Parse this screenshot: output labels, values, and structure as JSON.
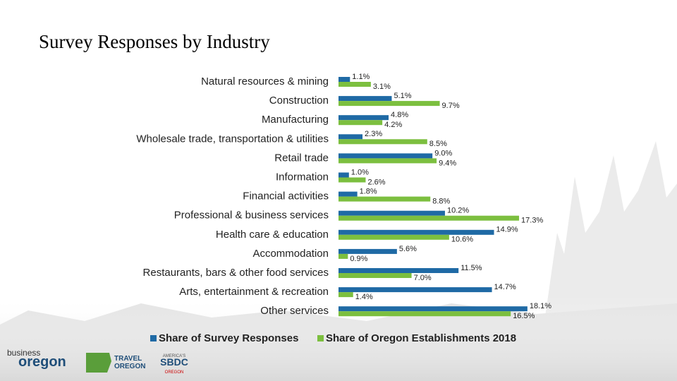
{
  "chart_data": {
    "type": "bar",
    "orientation": "horizontal",
    "title": "Survey Responses by Industry",
    "categories": [
      "Natural resources & mining",
      "Construction",
      "Manufacturing",
      "Wholesale trade, transportation & utilities",
      "Retail trade",
      "Information",
      "Financial activities",
      "Professional & business services",
      "Health care & education",
      "Accommodation",
      "Restaurants, bars & other food services",
      "Arts, entertainment & recreation",
      "Other services"
    ],
    "series": [
      {
        "name": "Share of Survey Responses",
        "color": "#1f6aa5",
        "values": [
          1.1,
          5.1,
          4.8,
          2.3,
          9.0,
          1.0,
          1.8,
          10.2,
          14.9,
          5.6,
          11.5,
          14.7,
          18.1
        ],
        "value_labels": [
          "1.1%",
          "5.1%",
          "4.8%",
          "2.3%",
          "9.0%",
          "1.0%",
          "1.8%",
          "10.2%",
          "14.9%",
          "5.6%",
          "11.5%",
          "14.7%",
          "18.1%"
        ]
      },
      {
        "name": "Share of Oregon Establishments 2018",
        "color": "#7cbf3f",
        "values": [
          3.1,
          9.7,
          4.2,
          8.5,
          9.4,
          2.6,
          8.8,
          17.3,
          10.6,
          0.9,
          7.0,
          1.4,
          16.5
        ],
        "value_labels": [
          "3.1%",
          "9.7%",
          "4.2%",
          "8.5%",
          "9.4%",
          "2.6%",
          "8.8%",
          "17.3%",
          "10.6%",
          "0.9%",
          "7.0%",
          "1.4%",
          "16.5%"
        ]
      }
    ],
    "legend": "bottom"
  },
  "logos": {
    "business": "business",
    "oregon": "oregon",
    "travel": "TRAVEL",
    "travel_oregon": "OREGON",
    "sbdc": "SBDC",
    "sbdc_top": "AMERICA'S",
    "sbdc_bottom": "OREGON"
  }
}
